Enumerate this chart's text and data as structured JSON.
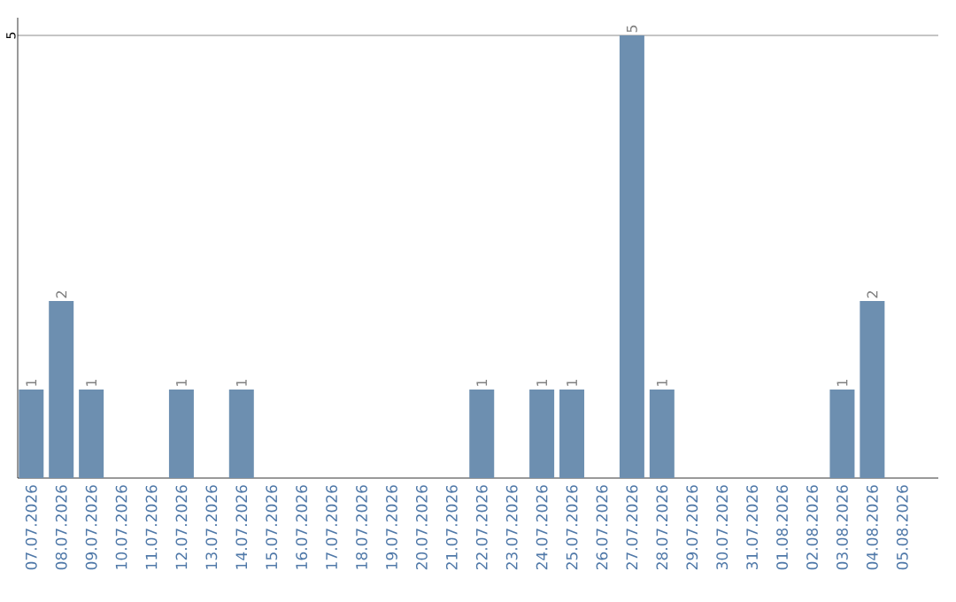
{
  "chart_data": {
    "type": "bar",
    "categories": [
      "07.07.2026",
      "08.07.2026",
      "09.07.2026",
      "10.07.2026",
      "11.07.2026",
      "12.07.2026",
      "13.07.2026",
      "14.07.2026",
      "15.07.2026",
      "16.07.2026",
      "17.07.2026",
      "18.07.2026",
      "19.07.2026",
      "20.07.2026",
      "21.07.2026",
      "22.07.2026",
      "23.07.2026",
      "24.07.2026",
      "25.07.2026",
      "26.07.2026",
      "27.07.2026",
      "28.07.2026",
      "29.07.2026",
      "30.07.2026",
      "31.07.2026",
      "01.08.2026",
      "02.08.2026",
      "03.08.2026",
      "04.08.2026",
      "05.08.2026"
    ],
    "values": [
      1,
      2,
      1,
      0,
      0,
      1,
      0,
      1,
      0,
      0,
      0,
      0,
      0,
      0,
      0,
      1,
      0,
      1,
      1,
      0,
      5,
      1,
      0,
      0,
      0,
      0,
      0,
      1,
      2,
      0
    ],
    "value_labels": [
      "1",
      "2",
      "1",
      null,
      null,
      "1",
      null,
      "1",
      null,
      null,
      null,
      null,
      null,
      null,
      null,
      "1",
      null,
      "1",
      "1",
      null,
      "5",
      "1",
      null,
      null,
      null,
      null,
      null,
      "1",
      "2",
      null
    ],
    "color": "#6d8fb0",
    "ylim": [
      0,
      5.2
    ],
    "yticks": [
      5
    ],
    "grid": "y"
  }
}
